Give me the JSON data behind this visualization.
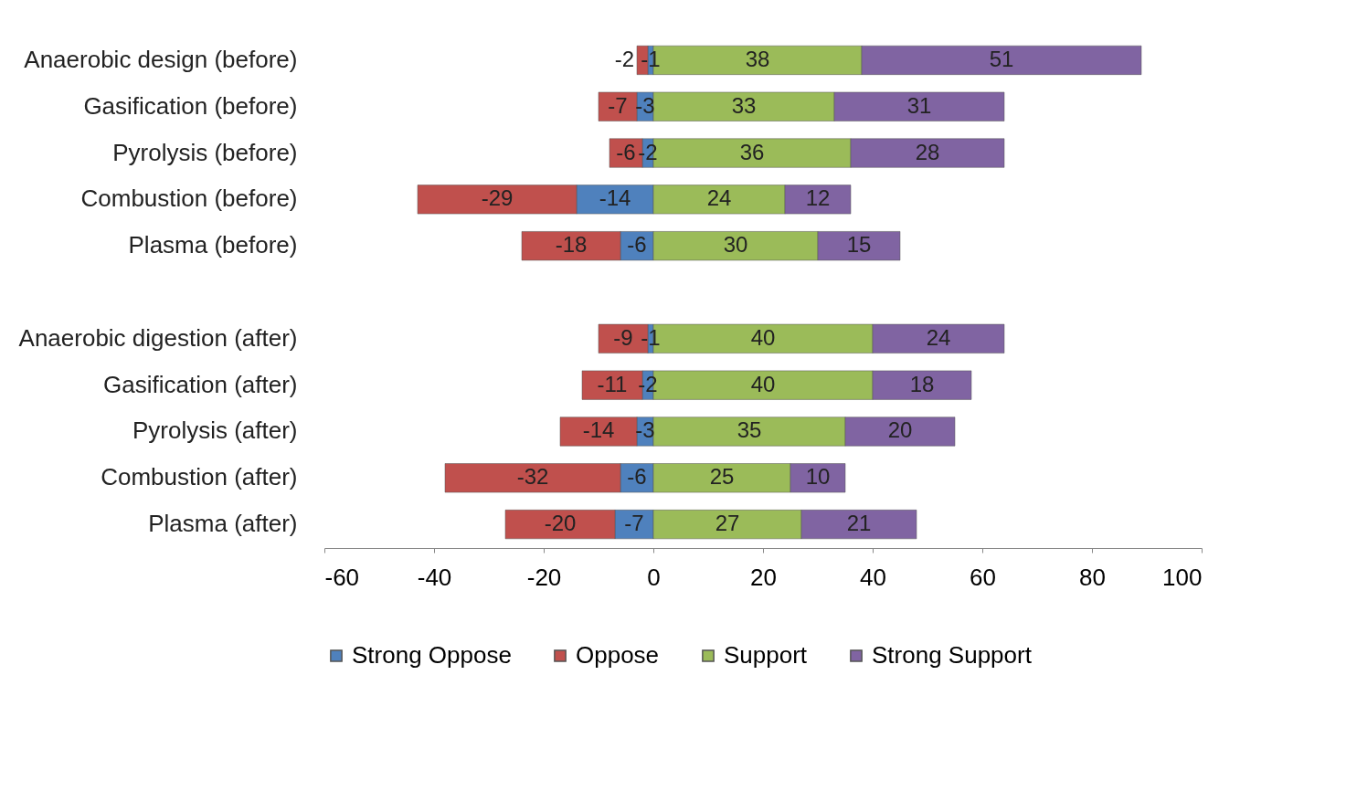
{
  "chart_data": {
    "type": "bar",
    "orientation": "horizontal",
    "stacked": true,
    "data_labels": true,
    "grid": false,
    "legend": "bottom",
    "categories": [
      "Anaerobic design (before)",
      "Gasification (before)",
      "Pyrolysis (before)",
      "Combustion (before)",
      "Plasma (before)",
      null,
      "Anaerobic digestion (after)",
      "Gasification (after)",
      "Pyrolysis (after)",
      "Combustion (after)",
      "Plasma (after)"
    ],
    "series": [
      {
        "name": "Strong Oppose",
        "color": "#4f81bd",
        "values": [
          -1,
          -3,
          -2,
          -14,
          -6,
          null,
          -1,
          -2,
          -3,
          -6,
          -7
        ]
      },
      {
        "name": "Oppose",
        "color": "#c0504d",
        "values": [
          -2,
          -7,
          -6,
          -29,
          -18,
          null,
          -9,
          -11,
          -14,
          -32,
          -20
        ]
      },
      {
        "name": "Support",
        "color": "#9bbb59",
        "values": [
          38,
          33,
          36,
          24,
          30,
          null,
          40,
          40,
          35,
          25,
          27
        ]
      },
      {
        "name": "Strong Support",
        "color": "#8064a2",
        "values": [
          51,
          31,
          28,
          12,
          15,
          null,
          24,
          18,
          20,
          10,
          21
        ]
      }
    ],
    "xlim": [
      -60,
      100
    ],
    "xticks": [
      -60,
      -40,
      -20,
      0,
      20,
      40,
      60,
      80,
      100
    ]
  }
}
